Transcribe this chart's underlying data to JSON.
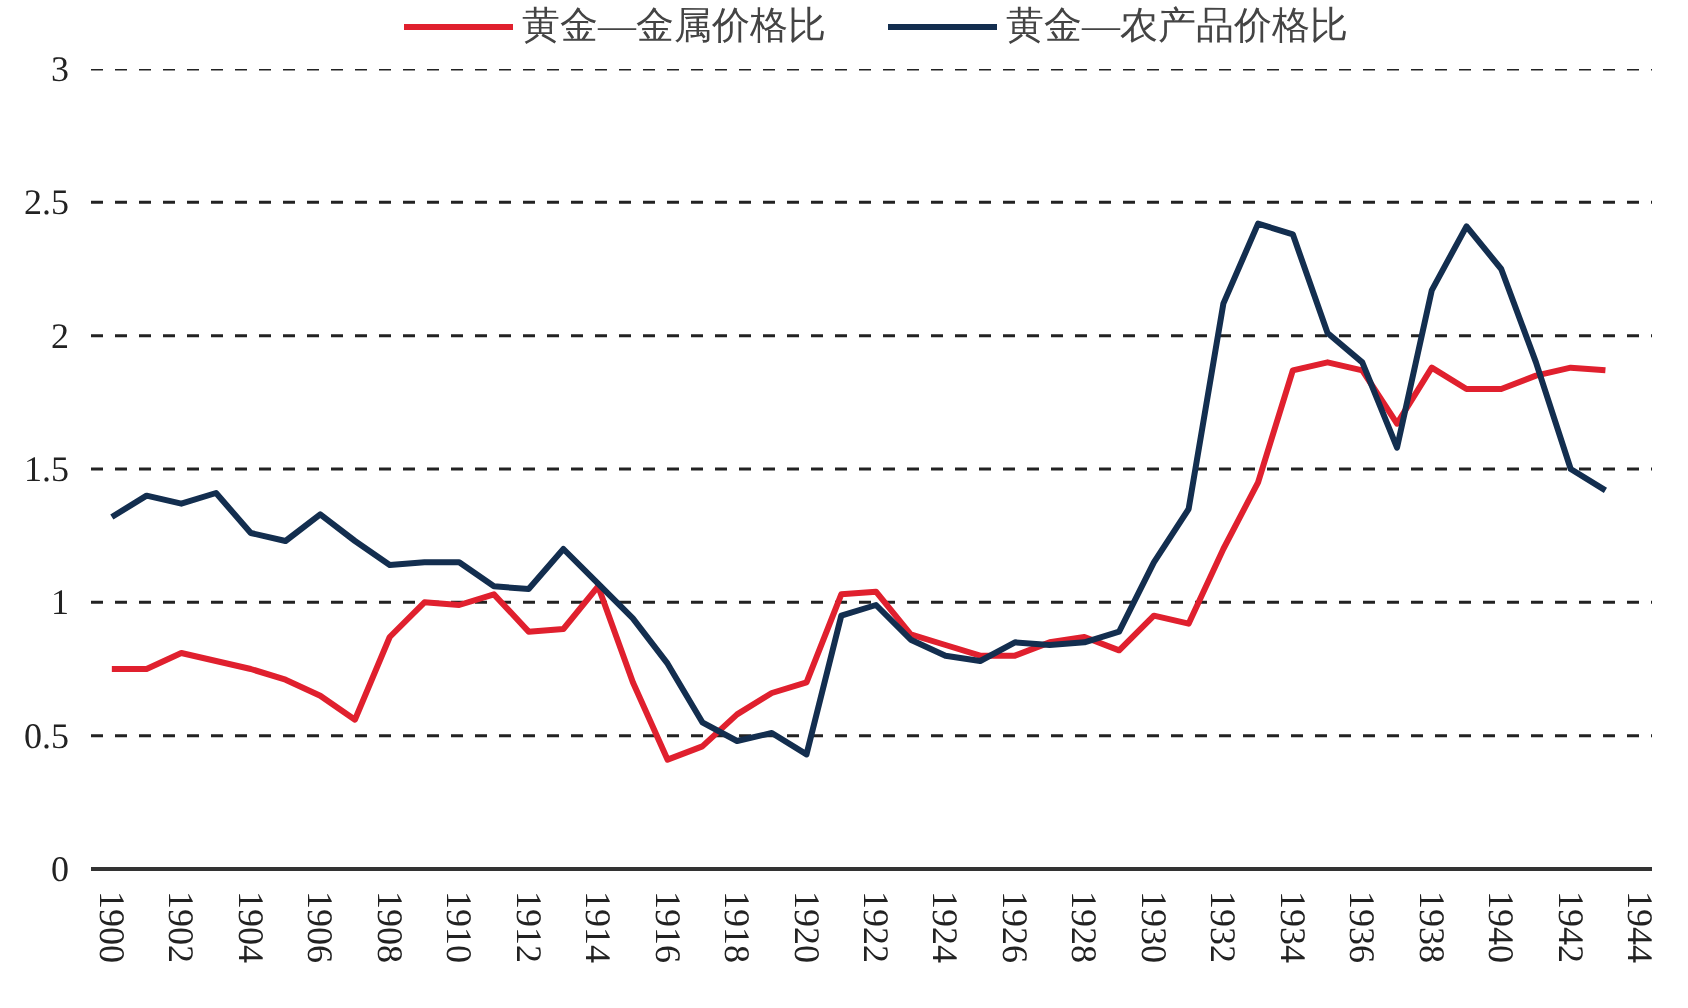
{
  "chart_data": {
    "type": "line",
    "x": [
      1900,
      1901,
      1902,
      1903,
      1904,
      1905,
      1906,
      1907,
      1908,
      1909,
      1910,
      1911,
      1912,
      1913,
      1914,
      1915,
      1916,
      1917,
      1918,
      1919,
      1920,
      1921,
      1922,
      1923,
      1924,
      1925,
      1926,
      1927,
      1928,
      1929,
      1930,
      1931,
      1932,
      1933,
      1934,
      1935,
      1936,
      1937,
      1938,
      1939,
      1940,
      1941,
      1942,
      1943
    ],
    "series": [
      {
        "name": "黄金—金属价格比",
        "color": "#e0202e",
        "values": [
          0.75,
          0.75,
          0.81,
          0.78,
          0.75,
          0.71,
          0.65,
          0.56,
          0.87,
          1.0,
          0.99,
          1.03,
          0.89,
          0.9,
          1.06,
          0.7,
          0.41,
          0.46,
          0.58,
          0.66,
          0.7,
          1.03,
          1.04,
          0.88,
          0.84,
          0.8,
          0.8,
          0.85,
          0.87,
          0.82,
          0.95,
          0.92,
          1.2,
          1.45,
          1.87,
          1.9,
          1.87,
          1.67,
          1.88,
          1.8,
          1.8,
          1.85,
          1.88,
          1.87
        ]
      },
      {
        "name": "黄金—农产品价格比",
        "color": "#132e4f",
        "values": [
          1.32,
          1.4,
          1.37,
          1.41,
          1.26,
          1.23,
          1.33,
          1.23,
          1.14,
          1.15,
          1.15,
          1.06,
          1.05,
          1.2,
          1.07,
          0.94,
          0.77,
          0.55,
          0.48,
          0.51,
          0.43,
          0.95,
          0.99,
          0.86,
          0.8,
          0.78,
          0.85,
          0.84,
          0.85,
          0.89,
          1.15,
          1.35,
          2.12,
          2.42,
          2.38,
          2.01,
          1.9,
          1.58,
          2.17,
          2.41,
          2.25,
          1.9,
          1.5,
          1.42
        ]
      }
    ],
    "xlim": [
      1899.4,
      1944.6
    ],
    "xticks": [
      1900,
      1902,
      1904,
      1906,
      1908,
      1910,
      1912,
      1914,
      1916,
      1918,
      1920,
      1922,
      1924,
      1926,
      1928,
      1930,
      1932,
      1934,
      1936,
      1938,
      1940,
      1942,
      1944
    ],
    "ylim": [
      0,
      3
    ],
    "yticks": [
      0,
      {
        "value": 0.5,
        "label": "0.5"
      },
      1,
      1.5,
      2,
      2.5,
      3
    ],
    "grid": "y",
    "legend": "top",
    "marker": "none",
    "line_style": "solid"
  }
}
